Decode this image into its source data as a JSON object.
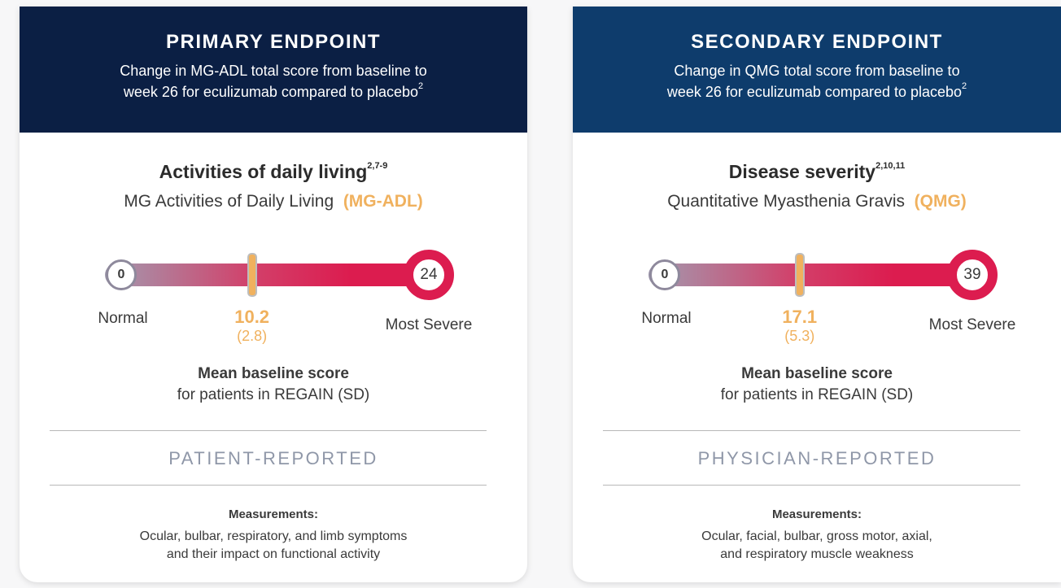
{
  "cards": [
    {
      "header": {
        "title": "PRIMARY ENDPOINT",
        "subtitle": [
          "Change in MG-ADL total score from baseline to",
          "week 26 for eculizumab compared to placebo"
        ],
        "subtitle_sup": "2"
      },
      "heading": "Activities of daily living",
      "heading_sup": "2,7-9",
      "scale_name": "MG Activities of Daily Living",
      "scale_abbr": "(MG-ADL)",
      "scale": {
        "min": 0,
        "max": 24,
        "mean": 10.2,
        "sd_label": "(2.8)",
        "low_label": "Normal",
        "high_label": "Most Severe"
      },
      "baseline_title": "Mean baseline score",
      "baseline_note": "for patients in REGAIN (SD)",
      "report_type": "PATIENT-REPORTED",
      "measurements_title": "Measurements:",
      "measurements": [
        "Ocular, bulbar, respiratory, and limb symptoms",
        "and their impact on functional activity"
      ]
    },
    {
      "header": {
        "title": "SECONDARY ENDPOINT",
        "subtitle": [
          "Change in QMG total score from baseline to",
          "week 26 for eculizumab compared to placebo"
        ],
        "subtitle_sup": "2"
      },
      "heading": "Disease severity",
      "heading_sup": "2,10,11",
      "scale_name": "Quantitative Myasthenia Gravis",
      "scale_abbr": "(QMG)",
      "scale": {
        "min": 0,
        "max": 39,
        "mean": 17.1,
        "sd_label": "(5.3)",
        "low_label": "Normal",
        "high_label": "Most Severe"
      },
      "baseline_title": "Mean baseline score",
      "baseline_note": "for patients in REGAIN (SD)",
      "report_type": "PHYSICIAN-REPORTED",
      "measurements_title": "Measurements:",
      "measurements": [
        "Ocular, facial, bulbar, gross motor, axial,",
        "and respiratory muscle weakness"
      ]
    }
  ]
}
